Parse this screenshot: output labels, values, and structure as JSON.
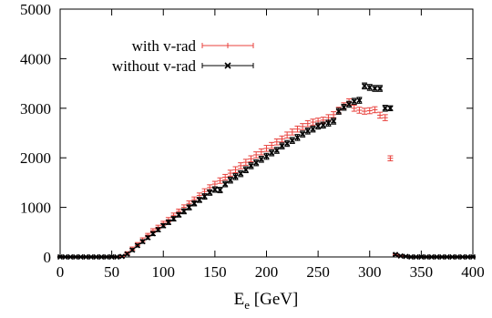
{
  "chart_data": {
    "type": "scatter",
    "title": "",
    "xlabel": {
      "main": "E",
      "sub": "e",
      "rest": " [GeV]"
    },
    "ylabel": "",
    "xlim": [
      0,
      400
    ],
    "ylim": [
      0,
      5000
    ],
    "x_ticks": [
      0,
      50,
      100,
      150,
      200,
      250,
      300,
      350,
      400
    ],
    "y_ticks": [
      0,
      1000,
      2000,
      3000,
      4000,
      5000
    ],
    "x_tick_labels": [
      "0",
      "50",
      "100",
      "150",
      "200",
      "250",
      "300",
      "350",
      "400"
    ],
    "y_tick_labels": [
      "0",
      "1000",
      "2000",
      "3000",
      "4000",
      "5000"
    ],
    "grid": false,
    "legend_position": "top-left",
    "series": [
      {
        "name": "with v-rad",
        "color": "#e8413c",
        "marker": "errorbar",
        "x": [
          0,
          5,
          10,
          15,
          20,
          25,
          30,
          35,
          40,
          45,
          50,
          55,
          60,
          65,
          70,
          75,
          80,
          85,
          90,
          95,
          100,
          105,
          110,
          115,
          120,
          125,
          130,
          135,
          140,
          145,
          150,
          155,
          160,
          165,
          170,
          175,
          180,
          185,
          190,
          195,
          200,
          205,
          210,
          215,
          220,
          225,
          230,
          235,
          240,
          245,
          250,
          255,
          260,
          265,
          270,
          275,
          280,
          285,
          290,
          295,
          300,
          305,
          310,
          315,
          320,
          325,
          330,
          335,
          340,
          345,
          350,
          355,
          360,
          365,
          370,
          375,
          380,
          385,
          390,
          395,
          400
        ],
        "y": [
          0,
          0,
          0,
          0,
          0,
          0,
          0,
          0,
          0,
          0,
          0,
          0,
          10,
          80,
          170,
          260,
          350,
          440,
          530,
          600,
          680,
          750,
          840,
          920,
          1000,
          1080,
          1160,
          1240,
          1320,
          1400,
          1470,
          1540,
          1610,
          1690,
          1760,
          1840,
          1910,
          1980,
          2060,
          2120,
          2190,
          2250,
          2320,
          2380,
          2460,
          2520,
          2580,
          2630,
          2690,
          2720,
          2740,
          2760,
          2810,
          2870,
          2960,
          3050,
          3130,
          3000,
          2960,
          2940,
          2950,
          2970,
          2860,
          2810,
          1990,
          50,
          20,
          10,
          0,
          0,
          0,
          0,
          0,
          0,
          0,
          0,
          0,
          0,
          0,
          0,
          0
        ],
        "err": [
          10,
          10,
          10,
          10,
          10,
          10,
          10,
          10,
          10,
          10,
          10,
          10,
          20,
          25,
          30,
          30,
          35,
          35,
          40,
          40,
          40,
          45,
          45,
          45,
          50,
          50,
          50,
          50,
          55,
          55,
          55,
          55,
          55,
          60,
          60,
          60,
          60,
          60,
          60,
          60,
          60,
          60,
          60,
          60,
          60,
          60,
          60,
          60,
          60,
          60,
          60,
          60,
          60,
          60,
          60,
          60,
          60,
          60,
          60,
          60,
          60,
          60,
          60,
          60,
          50,
          20,
          15,
          10,
          10,
          10,
          10,
          10,
          10,
          10,
          10,
          10,
          10,
          10,
          10,
          10,
          10
        ]
      },
      {
        "name": "without v-rad",
        "color": "#000000",
        "marker": "x-errorbar",
        "x": [
          0,
          5,
          10,
          15,
          20,
          25,
          30,
          35,
          40,
          45,
          50,
          55,
          60,
          65,
          70,
          75,
          80,
          85,
          90,
          95,
          100,
          105,
          110,
          115,
          120,
          125,
          130,
          135,
          140,
          145,
          150,
          155,
          160,
          165,
          170,
          175,
          180,
          185,
          190,
          195,
          200,
          205,
          210,
          215,
          220,
          225,
          230,
          235,
          240,
          245,
          250,
          255,
          260,
          265,
          270,
          275,
          280,
          285,
          290,
          295,
          300,
          305,
          310,
          315,
          320,
          325,
          330,
          335,
          340,
          345,
          350,
          355,
          360,
          365,
          370,
          375,
          380,
          385,
          390,
          395,
          400
        ],
        "y": [
          0,
          0,
          0,
          0,
          0,
          0,
          0,
          0,
          0,
          0,
          0,
          0,
          10,
          60,
          140,
          230,
          310,
          390,
          470,
          550,
          630,
          700,
          770,
          850,
          920,
          1000,
          1080,
          1150,
          1220,
          1300,
          1360,
          1350,
          1470,
          1550,
          1620,
          1680,
          1760,
          1840,
          1900,
          1970,
          2030,
          2100,
          2150,
          2240,
          2290,
          2350,
          2410,
          2480,
          2540,
          2580,
          2640,
          2660,
          2700,
          2740,
          2940,
          3020,
          3080,
          3140,
          3160,
          3450,
          3420,
          3400,
          3400,
          3000,
          3000,
          50,
          20,
          10,
          0,
          0,
          0,
          0,
          0,
          0,
          0,
          0,
          0,
          0,
          0,
          0,
          0
        ],
        "err": [
          10,
          10,
          10,
          10,
          10,
          10,
          10,
          10,
          10,
          10,
          10,
          10,
          20,
          25,
          30,
          30,
          35,
          35,
          40,
          40,
          40,
          45,
          45,
          45,
          50,
          50,
          50,
          50,
          55,
          55,
          55,
          55,
          55,
          60,
          60,
          60,
          60,
          60,
          60,
          60,
          60,
          60,
          60,
          60,
          60,
          60,
          60,
          60,
          60,
          60,
          60,
          60,
          60,
          60,
          60,
          60,
          60,
          60,
          60,
          60,
          60,
          60,
          60,
          60,
          50,
          20,
          15,
          10,
          10,
          10,
          10,
          10,
          10,
          10,
          10,
          10,
          10,
          10,
          10,
          10,
          10
        ]
      }
    ]
  }
}
